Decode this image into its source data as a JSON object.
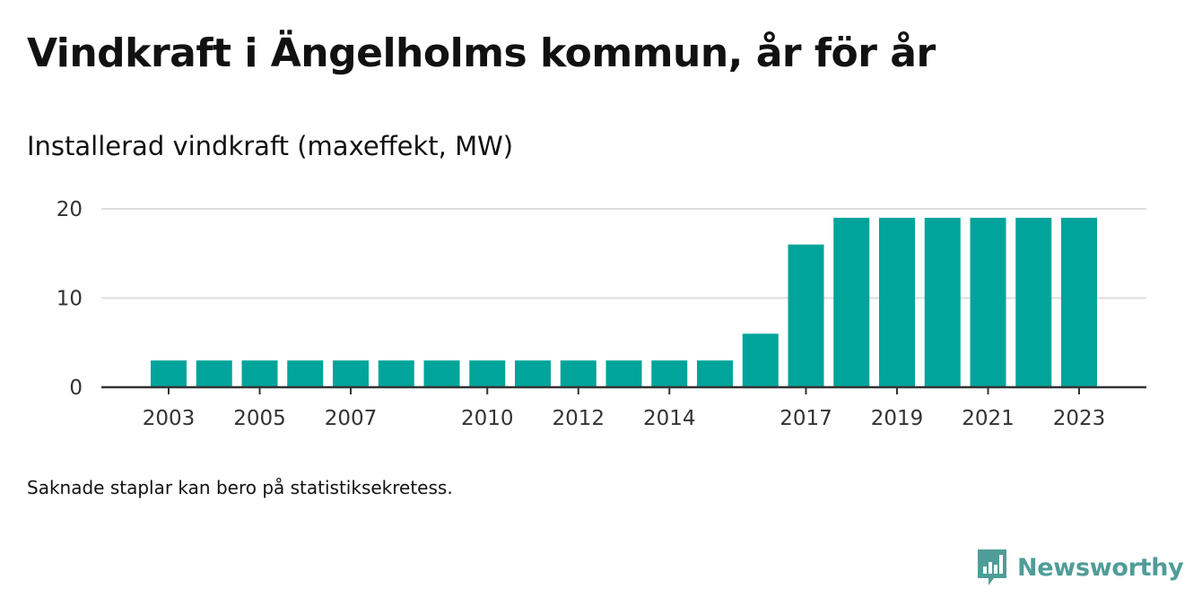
{
  "header": {
    "title": "Vindkraft i Ängelholms kommun, år för år",
    "subtitle": "Installerad vindkraft (maxeffekt, MW)"
  },
  "footnote": "Saknade staplar kan bero på statistiksekretess.",
  "brand": {
    "name": "Newsworthy",
    "icon": "newsworthy-logo-icon",
    "color": "#4f9d98"
  },
  "chart_data": {
    "type": "bar",
    "categories": [
      "2003",
      "2004",
      "2005",
      "2006",
      "2007",
      "2008",
      "2009",
      "2010",
      "2011",
      "2012",
      "2013",
      "2014",
      "2015",
      "2016",
      "2017",
      "2018",
      "2019",
      "2020",
      "2021",
      "2022",
      "2023"
    ],
    "values": [
      3,
      3,
      3,
      3,
      3,
      3,
      3,
      3,
      3,
      3,
      3,
      3,
      3,
      6,
      16,
      19,
      19,
      19,
      19,
      19,
      19
    ],
    "x_tick_labels": [
      "2003",
      "2005",
      "2007",
      "2010",
      "2012",
      "2014",
      "2017",
      "2019",
      "2021",
      "2023"
    ],
    "y_ticks": [
      0,
      10,
      20
    ],
    "ylim": [
      0,
      20
    ],
    "title": "Vindkraft i Ängelholms kommun, år för år",
    "subtitle": "Installerad vindkraft (maxeffekt, MW)",
    "xlabel": "",
    "ylabel": "",
    "grid": true,
    "bar_color": "#00a49a",
    "grid_color": "#dddddd",
    "axis_color": "#333333"
  }
}
